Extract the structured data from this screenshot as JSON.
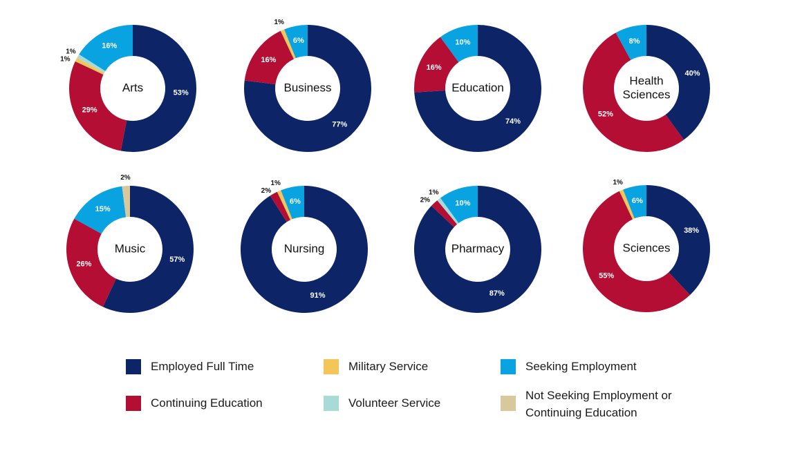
{
  "categories": [
    {
      "key": "employed_full_time",
      "label": "Employed Full Time",
      "color": "#0d2467"
    },
    {
      "key": "continuing_education",
      "label": "Continuing Education",
      "color": "#b50e35"
    },
    {
      "key": "military_service",
      "label": "Military Service",
      "color": "#f4c65a"
    },
    {
      "key": "volunteer_service",
      "label": "Volunteer Service",
      "color": "#a8dad8"
    },
    {
      "key": "seeking_employment",
      "label": "Seeking Employment",
      "color": "#0aa3e2"
    },
    {
      "key": "not_seeking",
      "label": "Not Seeking Employment or\nContinuing Education",
      "color": "#d8c89b"
    }
  ],
  "chart_data": [
    {
      "type": "pie",
      "title": "Arts",
      "values": {
        "employed_full_time": 53,
        "continuing_education": 29,
        "military_service": 1,
        "volunteer_service": 1,
        "seeking_employment": 16
      }
    },
    {
      "type": "pie",
      "title": "Business",
      "values": {
        "employed_full_time": 77,
        "continuing_education": 16,
        "military_service": 1,
        "seeking_employment": 6
      }
    },
    {
      "type": "pie",
      "title": "Education",
      "values": {
        "employed_full_time": 74,
        "continuing_education": 16,
        "seeking_employment": 10
      }
    },
    {
      "type": "pie",
      "title": "Health\nSciences",
      "values": {
        "employed_full_time": 40,
        "continuing_education": 52,
        "seeking_employment": 8
      }
    },
    {
      "type": "pie",
      "title": "Music",
      "values": {
        "employed_full_time": 57,
        "continuing_education": 26,
        "seeking_employment": 15,
        "not_seeking": 2
      }
    },
    {
      "type": "pie",
      "title": "Nursing",
      "values": {
        "employed_full_time": 91,
        "continuing_education": 2,
        "military_service": 1,
        "seeking_employment": 6
      }
    },
    {
      "type": "pie",
      "title": "Pharmacy",
      "values": {
        "employed_full_time": 87,
        "continuing_education": 2,
        "volunteer_service": 1,
        "seeking_employment": 10
      }
    },
    {
      "type": "pie",
      "title": "Sciences",
      "values": {
        "employed_full_time": 38,
        "continuing_education": 55,
        "military_service": 1,
        "seeking_employment": 6
      }
    }
  ]
}
